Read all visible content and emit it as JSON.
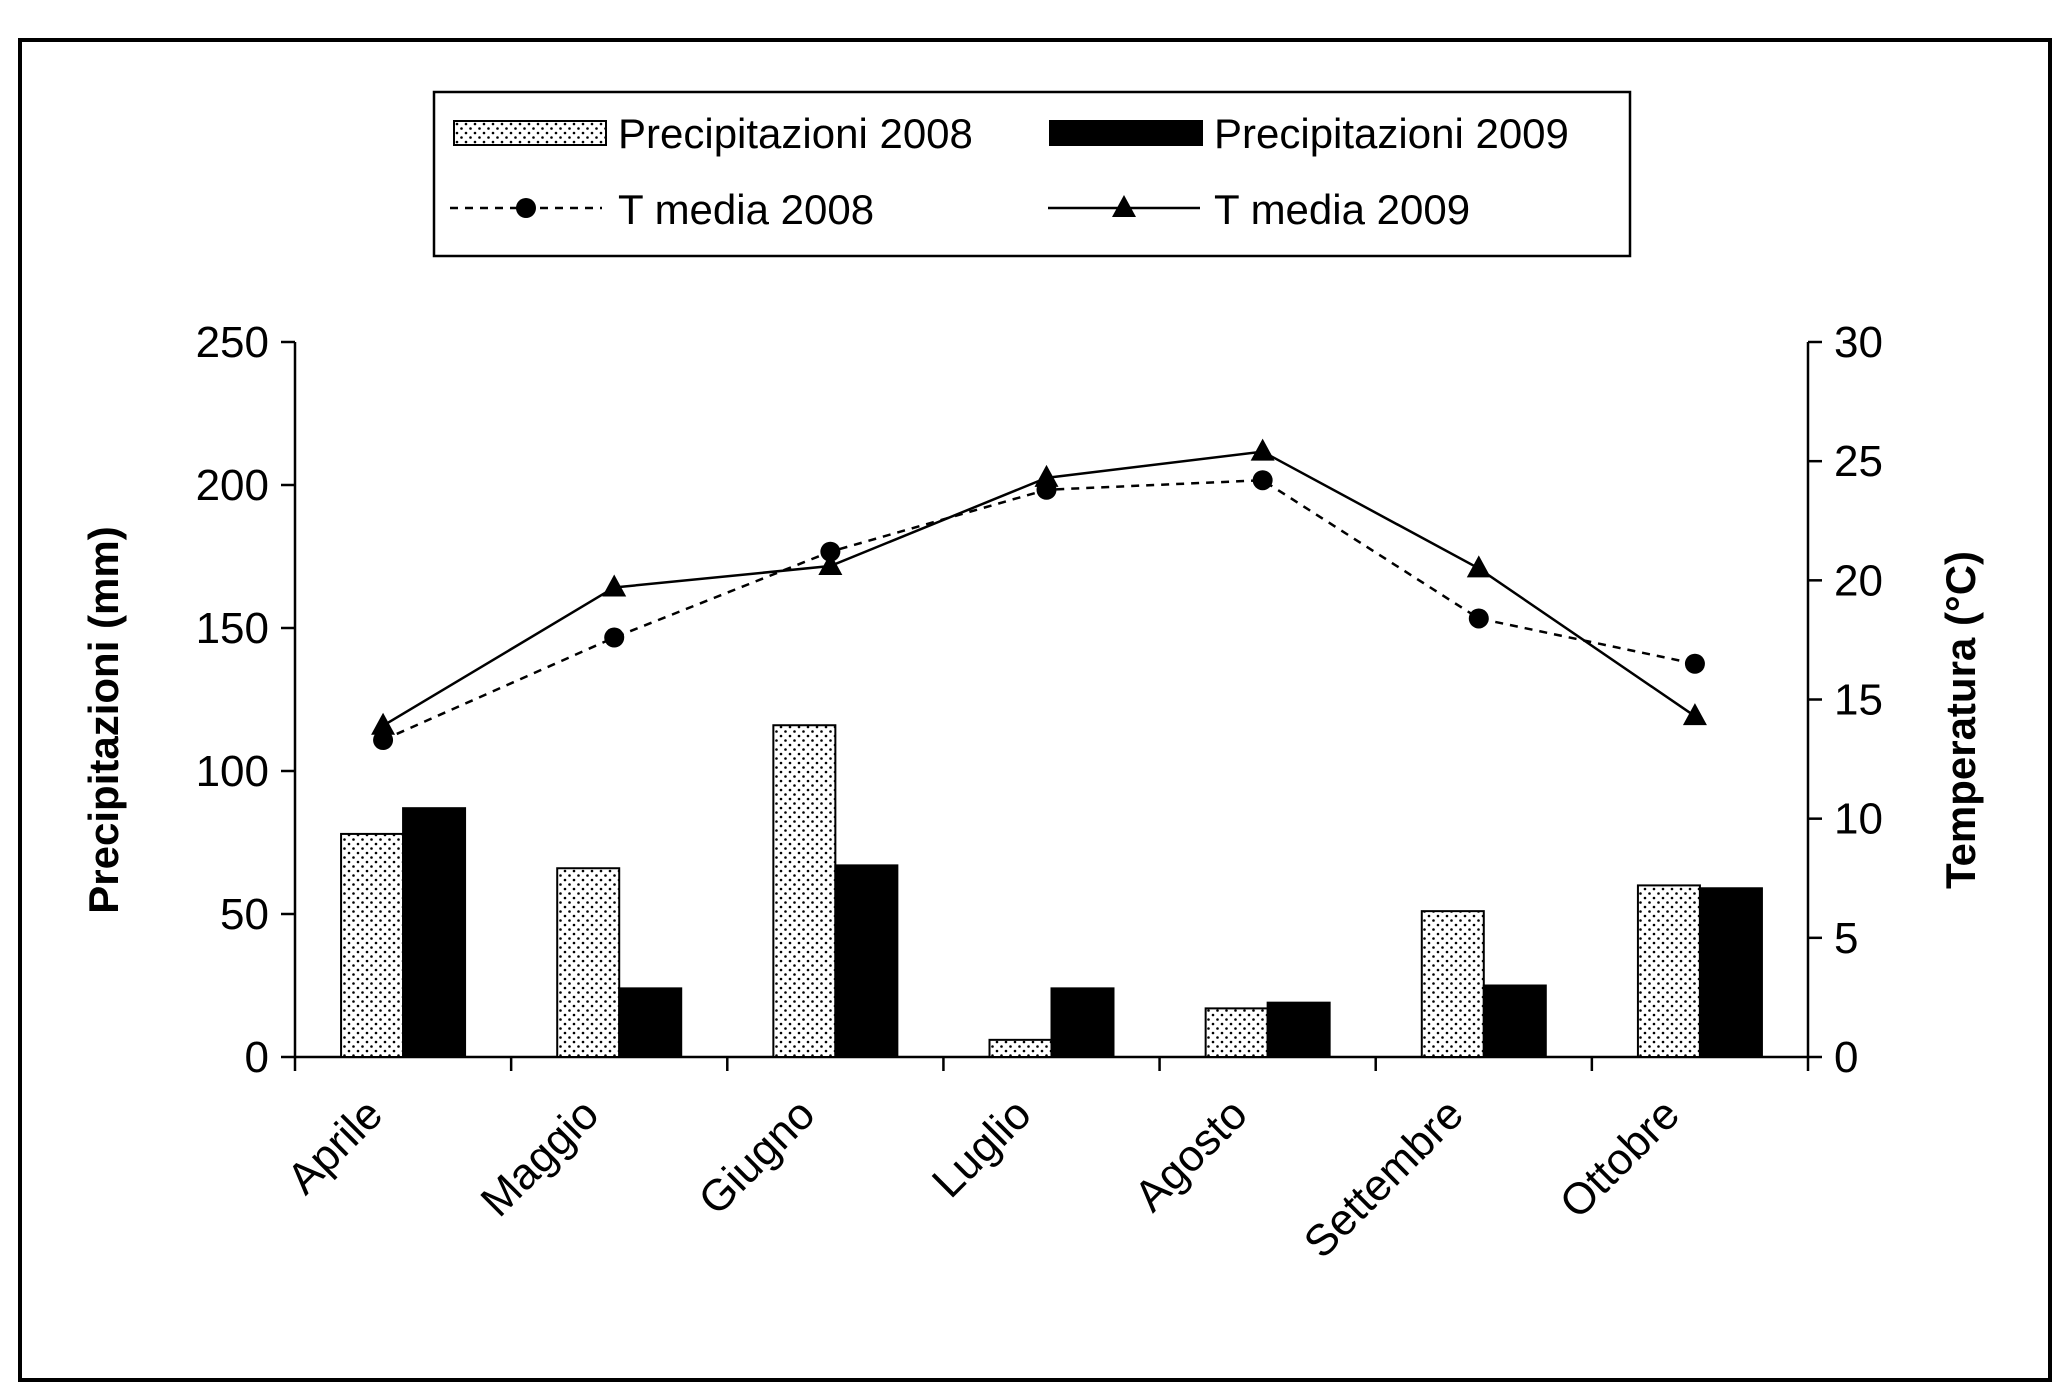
{
  "chart_data": {
    "type": "bar",
    "categories": [
      "Aprile",
      "Maggio",
      "Giugno",
      "Luglio",
      "Agosto",
      "Settembre",
      "Ottobre"
    ],
    "series": [
      {
        "name": "Precipitazioni 2008",
        "kind": "bar",
        "axis": "left",
        "style": "dotted",
        "values": [
          78,
          66,
          116,
          6,
          17,
          51,
          60
        ]
      },
      {
        "name": "Precipitazioni 2009",
        "kind": "bar",
        "axis": "left",
        "style": "solid-black",
        "values": [
          87,
          24,
          67,
          24,
          19,
          25,
          59
        ]
      },
      {
        "name": "T media 2008",
        "kind": "line",
        "axis": "right",
        "style": "dashed-circle",
        "values": [
          13.3,
          17.6,
          21.2,
          23.8,
          24.2,
          18.4,
          16.5
        ]
      },
      {
        "name": "T media 2009",
        "kind": "line",
        "axis": "right",
        "style": "solid-triangle",
        "values": [
          13.9,
          19.7,
          20.6,
          24.3,
          25.4,
          20.5,
          14.3
        ]
      }
    ],
    "ylabel_left": "Precipitazioni (mm)",
    "ylabel_right": "Temperatura (°C)",
    "ylim_left": [
      0,
      250
    ],
    "ylim_right": [
      0,
      30
    ],
    "yticks_left": [
      0,
      50,
      100,
      150,
      200,
      250
    ],
    "yticks_right": [
      0,
      5,
      10,
      15,
      20,
      25,
      30
    ],
    "grid": false,
    "legend_position": "top"
  }
}
